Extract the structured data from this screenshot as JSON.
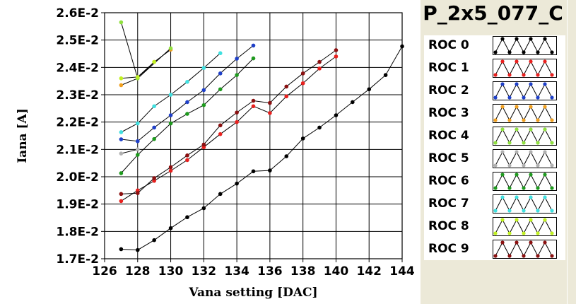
{
  "chart_data": {
    "type": "line",
    "title": "P_2x5_077_C",
    "xlabel": "Vana setting [DAC]",
    "ylabel": "Iana [A]",
    "xlim": [
      126,
      144
    ],
    "ylim": [
      0.017,
      0.026
    ],
    "xticks": [
      126,
      128,
      130,
      132,
      134,
      136,
      138,
      140,
      142,
      144
    ],
    "yticks": [
      {
        "value": 0.017,
        "label": "1.7E-2"
      },
      {
        "value": 0.018,
        "label": "1.8E-2"
      },
      {
        "value": 0.019,
        "label": "1.9E-2"
      },
      {
        "value": 0.02,
        "label": "2.0E-2"
      },
      {
        "value": 0.021,
        "label": "2.1E-2"
      },
      {
        "value": 0.022,
        "label": "2.2E-2"
      },
      {
        "value": 0.023,
        "label": "2.3E-2"
      },
      {
        "value": 0.024,
        "label": "2.4E-2"
      },
      {
        "value": 0.025,
        "label": "2.5E-2"
      },
      {
        "value": 0.026,
        "label": "2.6E-2"
      }
    ],
    "grid": true,
    "legend_position": "right",
    "series": [
      {
        "name": "ROC 0",
        "color": "#000000",
        "x": [
          127,
          128,
          129,
          130,
          131,
          132,
          133,
          134,
          135,
          136,
          137,
          138,
          139,
          140,
          141,
          142,
          143,
          144
        ],
        "y": [
          0.01735,
          0.01732,
          0.01768,
          0.01812,
          0.01852,
          0.01885,
          0.01937,
          0.01975,
          0.0202,
          0.02023,
          0.02075,
          0.0214,
          0.0218,
          0.02225,
          0.02273,
          0.0232,
          0.02372,
          0.02477
        ]
      },
      {
        "name": "ROC 1",
        "color": "#e8201e",
        "x": [
          127,
          128,
          129,
          130,
          131,
          132,
          133,
          134,
          135,
          136,
          137,
          138,
          139,
          140
        ],
        "y": [
          0.01911,
          0.0195,
          0.01985,
          0.02022,
          0.02061,
          0.02108,
          0.02156,
          0.022,
          0.02258,
          0.02233,
          0.02294,
          0.02342,
          0.02396,
          0.0244
        ]
      },
      {
        "name": "ROC 2",
        "color": "#1e3fc8",
        "x": [
          127,
          128,
          129,
          130,
          131,
          132,
          133,
          134,
          135
        ],
        "y": [
          0.02137,
          0.0213,
          0.0218,
          0.02225,
          0.02273,
          0.02317,
          0.02378,
          0.02432,
          0.0248
        ]
      },
      {
        "name": "ROC 3",
        "color": "#f0a020",
        "x": [
          127,
          128,
          129,
          130
        ],
        "y": [
          0.02335,
          0.0236,
          0.0242,
          0.02465
        ]
      },
      {
        "name": "ROC 4",
        "color": "#90e040",
        "x": [
          127,
          128,
          130
        ],
        "y": [
          0.02565,
          0.0236,
          0.0247
        ]
      },
      {
        "name": "ROC 5",
        "color": "#b0b0b0",
        "x": [
          127,
          128
        ],
        "y": [
          0.02085,
          0.021
        ]
      },
      {
        "name": "ROC 6",
        "color": "#1e9a1e",
        "x": [
          127,
          128,
          129,
          130,
          131,
          132,
          133,
          134,
          135
        ],
        "y": [
          0.02013,
          0.0208,
          0.02138,
          0.02195,
          0.0223,
          0.02262,
          0.0232,
          0.02372,
          0.02433
        ]
      },
      {
        "name": "ROC 7",
        "color": "#40e0e0",
        "x": [
          127,
          128,
          129,
          130,
          131,
          132,
          133
        ],
        "y": [
          0.02163,
          0.02195,
          0.02258,
          0.023,
          0.02347,
          0.02398,
          0.02452
        ]
      },
      {
        "name": "ROC 8",
        "color": "#c0f020",
        "x": [
          127,
          128,
          129
        ],
        "y": [
          0.0236,
          0.02365,
          0.0242
        ]
      },
      {
        "name": "ROC 9",
        "color": "#8a1010",
        "x": [
          127,
          128,
          129,
          130,
          131,
          132,
          133,
          134,
          135,
          136,
          137,
          138,
          139,
          140
        ],
        "y": [
          0.01937,
          0.0194,
          0.01995,
          0.02035,
          0.02078,
          0.02118,
          0.02188,
          0.02235,
          0.02278,
          0.0227,
          0.0233,
          0.02378,
          0.0242,
          0.02463
        ]
      }
    ]
  }
}
